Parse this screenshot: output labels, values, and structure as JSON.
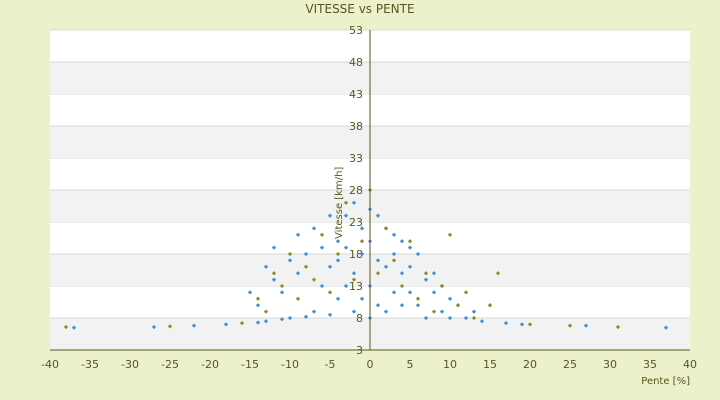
{
  "chart_data": {
    "type": "scatter",
    "title": "VITESSE vs PENTE",
    "xlabel": "Pente [%]",
    "ylabel": "Vitesse [km/h]",
    "xlim": [
      -40,
      40
    ],
    "ylim": [
      3,
      53
    ],
    "x_ticks": [
      -40,
      -35,
      -30,
      -25,
      -20,
      -15,
      -10,
      -5,
      0,
      5,
      10,
      15,
      20,
      25,
      30,
      35,
      40
    ],
    "y_ticks": [
      3,
      8,
      13,
      18,
      23,
      28,
      33,
      38,
      43,
      48,
      53
    ],
    "grid": "horizontal bands",
    "legend": "none",
    "colors": {
      "background": "#ecf1cc",
      "plot": "#ffffff",
      "band": "#f2f2f2",
      "gridline": "#d9d9d9",
      "axis": "#55581c",
      "series_a": "#3d8fd6",
      "series_b": "#8d8d1e"
    },
    "series": [
      {
        "color": "#3d8fd6",
        "x": [
          -37,
          -27,
          -22,
          -18,
          -15,
          -14,
          -14,
          -13,
          -13,
          -12,
          -12,
          -11,
          -11,
          -10,
          -10,
          -9,
          -9,
          -8,
          -8,
          -7,
          -7,
          -6,
          -6,
          -5,
          -5,
          -5,
          -4,
          -4,
          -4,
          -3,
          -3,
          -3,
          -2,
          -2,
          -2,
          -1,
          -1,
          -1,
          0,
          0,
          0,
          0,
          1,
          1,
          1,
          2,
          2,
          2,
          3,
          3,
          3,
          4,
          4,
          4,
          5,
          5,
          5,
          6,
          6,
          7,
          7,
          8,
          8,
          9,
          9,
          10,
          10,
          11,
          12,
          13,
          14,
          15,
          17,
          19,
          27,
          37
        ],
        "y": [
          6.5,
          6.6,
          6.8,
          7.0,
          12,
          7.3,
          10,
          16,
          7.5,
          14,
          19,
          7.8,
          12,
          17,
          8.0,
          15,
          21,
          8.2,
          18,
          22,
          9,
          13,
          19,
          24,
          8.5,
          16,
          20,
          11,
          17,
          24,
          13,
          19,
          26,
          9,
          15,
          22,
          11,
          18,
          25,
          8,
          13,
          20,
          24,
          10,
          17,
          22,
          9,
          16,
          21,
          12,
          18,
          20,
          10,
          15,
          19,
          12,
          16,
          18,
          10,
          14,
          8,
          12,
          15,
          9,
          13,
          8,
          11,
          10,
          8,
          9,
          7.5,
          10,
          7.2,
          7.0,
          6.8,
          6.5
        ]
      },
      {
        "color": "#8d8d1e",
        "x": [
          -38,
          -25,
          -16,
          -14,
          -13,
          -12,
          -11,
          -10,
          -9,
          -8,
          -7,
          -6,
          -5,
          -4,
          -3,
          -2,
          -1,
          0,
          1,
          2,
          3,
          4,
          5,
          6,
          7,
          8,
          9,
          10,
          11,
          12,
          13,
          15,
          16,
          20,
          25,
          31
        ],
        "y": [
          6.6,
          6.7,
          7.2,
          11,
          9,
          15,
          13,
          18,
          11,
          16,
          14,
          21,
          12,
          18,
          26,
          14,
          20,
          28,
          15,
          22,
          17,
          13,
          20,
          11,
          15,
          9,
          13,
          21,
          10,
          12,
          8,
          10,
          15,
          7.0,
          6.8,
          6.6
        ]
      }
    ]
  }
}
